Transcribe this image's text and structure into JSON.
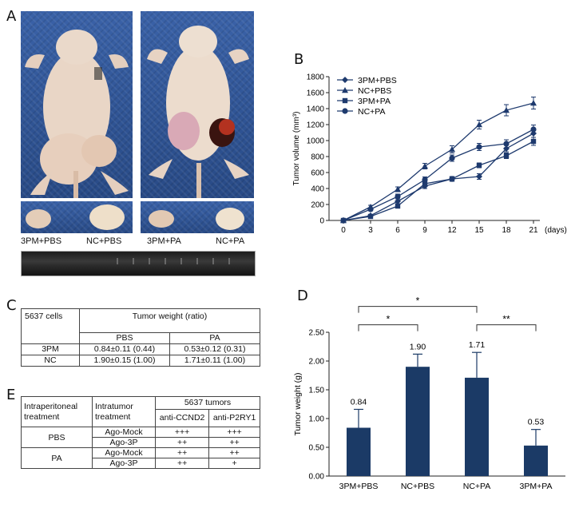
{
  "panels": {
    "a": "A",
    "b": "B",
    "c": "C",
    "d": "D",
    "e": "E"
  },
  "panel_a": {
    "captions": [
      "3PM+PBS",
      "NC+PBS",
      "3PM+PA",
      "NC+PA"
    ]
  },
  "chart_data": [
    {
      "type": "line",
      "ylabel": "Tumor volume (mm³)",
      "x_unit": "(days)",
      "x": [
        0,
        3,
        6,
        9,
        12,
        15,
        18,
        21
      ],
      "ylim": [
        0,
        1800
      ],
      "yticks": [
        0,
        200,
        400,
        600,
        800,
        1000,
        1200,
        1400,
        1600,
        1800
      ],
      "legend_position": "top-left",
      "series": [
        {
          "name": "3PM+PBS",
          "marker": "diamond",
          "values": [
            0,
            60,
            240,
            430,
            520,
            550,
            900,
            1090
          ],
          "err": [
            0,
            15,
            30,
            30,
            30,
            35,
            40,
            50
          ]
        },
        {
          "name": "NC+PBS",
          "marker": "triangle",
          "values": [
            0,
            170,
            390,
            680,
            890,
            1200,
            1380,
            1470
          ],
          "err": [
            0,
            20,
            30,
            35,
            45,
            55,
            70,
            75
          ]
        },
        {
          "name": "3PM+PA",
          "marker": "square",
          "values": [
            0,
            50,
            180,
            460,
            520,
            690,
            810,
            990
          ],
          "err": [
            0,
            15,
            25,
            30,
            25,
            30,
            35,
            50
          ]
        },
        {
          "name": "NC+PA",
          "marker": "circle",
          "values": [
            0,
            140,
            300,
            510,
            780,
            920,
            960,
            1140
          ],
          "err": [
            0,
            20,
            30,
            35,
            40,
            45,
            50,
            55
          ]
        }
      ]
    },
    {
      "type": "bar",
      "ylabel": "Tumor weight (g)",
      "categories": [
        "3PM+PBS",
        "NC+PBS",
        "NC+PA",
        "3PM+PA"
      ],
      "values": [
        0.84,
        1.9,
        1.71,
        0.53
      ],
      "value_labels": [
        "0.84",
        "1.90",
        "1.71",
        "0.53"
      ],
      "err": [
        0.32,
        0.22,
        0.44,
        0.28
      ],
      "ylim": [
        0,
        2.5
      ],
      "yticks": [
        "0.00",
        "0.50",
        "1.00",
        "1.50",
        "2.00",
        "2.50"
      ],
      "bar_color": "#1b3a66",
      "significance": [
        {
          "from": 0,
          "to": 2,
          "label": "*",
          "level": 2.95
        },
        {
          "from": 0,
          "to": 1,
          "label": "*",
          "level": 2.63
        },
        {
          "from": 2,
          "to": 3,
          "label": "**",
          "level": 2.63
        }
      ]
    }
  ],
  "table_c": {
    "corner": "5637 cells",
    "header": "Tumor weight (ratio)",
    "col_pbs": "PBS",
    "col_pa": "PA",
    "rows": [
      {
        "label": "3PM",
        "pbs": "0.84±0.11 (0.44)",
        "pa": "0.53±0.12 (0.31)"
      },
      {
        "label": "NC",
        "pbs": "1.90±0.15 (1.00)",
        "pa": "1.71±0.11 (1.00)"
      }
    ]
  },
  "table_e": {
    "h_intraperitoneal": "Intraperitoneal treatment",
    "h_intratumor": "Intratumor treatment",
    "h_tumors": "5637 tumors",
    "h_ccnd2": "anti-CCND2",
    "h_p2ry1": "anti-P2RY1",
    "groups": [
      {
        "label": "PBS",
        "rows": [
          {
            "agent": "Ago-Mock",
            "ccnd2": "+++",
            "p2ry1": "+++"
          },
          {
            "agent": "Ago-3P",
            "ccnd2": "++",
            "p2ry1": "++"
          }
        ]
      },
      {
        "label": "PA",
        "rows": [
          {
            "agent": "Ago-Mock",
            "ccnd2": "++",
            "p2ry1": "++"
          },
          {
            "agent": "Ago-3P",
            "ccnd2": "++",
            "p2ry1": "+"
          }
        ]
      }
    ]
  }
}
